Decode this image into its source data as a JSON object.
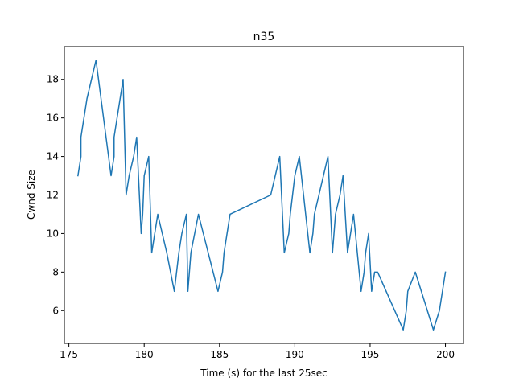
{
  "chart_data": {
    "type": "line",
    "title": "n35",
    "xlabel": "Time (s) for the last 25sec",
    "ylabel": "Cwnd Size",
    "xlim": [
      174.7,
      201.2
    ],
    "ylim": [
      4.3,
      19.7
    ],
    "xticks": [
      175,
      180,
      185,
      190,
      195,
      200
    ],
    "yticks": [
      6,
      8,
      10,
      12,
      14,
      16,
      18
    ],
    "grid": false,
    "color": "#1f77b4",
    "series": [
      {
        "x": [
          175.6,
          175.8,
          175.8,
          176.0,
          176.2,
          176.5,
          176.8,
          177.8,
          178.0,
          178.0,
          178.2,
          178.4,
          178.6,
          178.8,
          179.0,
          179.3,
          179.5,
          179.8,
          179.9,
          180.0,
          180.3,
          180.5,
          180.7,
          180.9,
          181.2,
          181.5,
          182.0,
          182.3,
          182.5,
          182.8,
          182.9,
          183.1,
          183.6,
          184.9,
          185.2,
          185.3,
          185.5,
          185.7,
          188.4,
          188.7,
          189.0,
          189.3,
          189.6,
          189.7,
          190.0,
          190.3,
          191.0,
          191.2,
          191.3,
          191.6,
          191.9,
          192.2,
          192.5,
          192.7,
          193.0,
          193.2,
          193.5,
          193.7,
          193.9,
          194.4,
          194.6,
          194.7,
          194.9,
          195.1,
          195.3,
          195.5,
          197.2,
          197.4,
          197.5,
          198.0,
          199.2,
          199.6,
          199.8,
          200.0
        ],
        "y": [
          13,
          14,
          15,
          16,
          17,
          18,
          19,
          13,
          14,
          15,
          16,
          17,
          18,
          12,
          13,
          14,
          15,
          10,
          11,
          13,
          14,
          9,
          10,
          11,
          10,
          9,
          7,
          9,
          10,
          11,
          7,
          9,
          11,
          7,
          8,
          9,
          10,
          11,
          12,
          13,
          14,
          9,
          10,
          11,
          13,
          14,
          9,
          10,
          11,
          12,
          13,
          14,
          9,
          11,
          12,
          13,
          9,
          10,
          11,
          7,
          8,
          9,
          10,
          7,
          8,
          8,
          5,
          6,
          7,
          8,
          5,
          6,
          7,
          8
        ]
      }
    ]
  }
}
